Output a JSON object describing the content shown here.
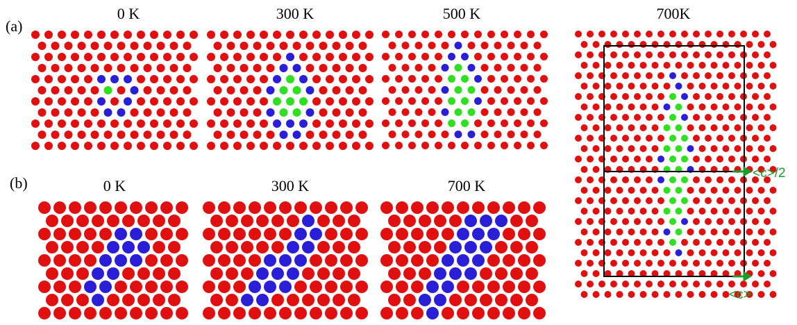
{
  "panel_a": {
    "label": "(a)",
    "titles": [
      "0 K",
      "300 K",
      "500 K",
      "700K"
    ]
  },
  "panel_b": {
    "label": "(b)",
    "titles": [
      "0 K",
      "300 K",
      "700 K"
    ]
  },
  "annotations": {
    "half_c": "<c>/2",
    "c": "<c>"
  }
}
